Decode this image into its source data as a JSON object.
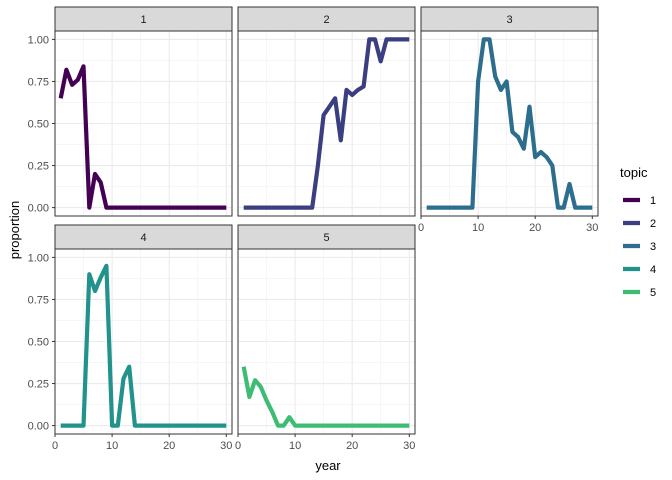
{
  "chart_data": {
    "type": "line",
    "facet_by": "topic",
    "xlabel": "year",
    "ylabel": "proportion",
    "xlim": [
      0,
      31
    ],
    "ylim": [
      -0.05,
      1.05
    ],
    "x_ticks": [
      0,
      10,
      20,
      30
    ],
    "y_ticks": [
      0.0,
      0.25,
      0.5,
      0.75,
      1.0
    ],
    "y_tick_labels": [
      "0.00",
      "0.25",
      "0.50",
      "0.75",
      "1.00"
    ],
    "grid": true,
    "legend": {
      "title": "topic",
      "placement": "right",
      "entries": [
        "1",
        "2",
        "3",
        "4",
        "5"
      ]
    },
    "colors": [
      "#440154",
      "#3b3f81",
      "#2d6e8e",
      "#21928c",
      "#3dbc74"
    ],
    "facets": [
      {
        "label": "1",
        "color": "#440154",
        "x": [
          1,
          2,
          3,
          4,
          5,
          6,
          7,
          8,
          9,
          10,
          11,
          12,
          13,
          14,
          15,
          16,
          17,
          18,
          19,
          20,
          21,
          22,
          23,
          24,
          25,
          26,
          27,
          28,
          29,
          30
        ],
        "y": [
          0.65,
          0.82,
          0.73,
          0.76,
          0.84,
          0.0,
          0.2,
          0.15,
          0,
          0,
          0,
          0,
          0,
          0,
          0,
          0,
          0,
          0,
          0,
          0,
          0,
          0,
          0,
          0,
          0,
          0,
          0,
          0,
          0,
          0
        ]
      },
      {
        "label": "2",
        "color": "#3b3f81",
        "x": [
          1,
          2,
          3,
          4,
          5,
          6,
          7,
          8,
          9,
          10,
          11,
          12,
          13,
          14,
          15,
          16,
          17,
          18,
          19,
          20,
          21,
          22,
          23,
          24,
          25,
          26,
          27,
          28,
          29,
          30
        ],
        "y": [
          0,
          0,
          0,
          0,
          0,
          0,
          0,
          0,
          0,
          0,
          0,
          0,
          0,
          0.25,
          0.55,
          0.6,
          0.65,
          0.4,
          0.7,
          0.67,
          0.7,
          0.72,
          1.0,
          1.0,
          0.87,
          1.0,
          1.0,
          1.0,
          1.0,
          1.0
        ]
      },
      {
        "label": "3",
        "color": "#2d6e8e",
        "x": [
          1,
          2,
          3,
          4,
          5,
          6,
          7,
          8,
          9,
          10,
          11,
          12,
          13,
          14,
          15,
          16,
          17,
          18,
          19,
          20,
          21,
          22,
          23,
          24,
          25,
          26,
          27,
          28,
          29,
          30
        ],
        "y": [
          0,
          0,
          0,
          0,
          0,
          0,
          0,
          0,
          0,
          0.75,
          1.0,
          1.0,
          0.78,
          0.7,
          0.75,
          0.45,
          0.42,
          0.35,
          0.6,
          0.3,
          0.33,
          0.3,
          0.25,
          0,
          0,
          0.14,
          0,
          0,
          0,
          0
        ]
      },
      {
        "label": "4",
        "color": "#21928c",
        "x": [
          1,
          2,
          3,
          4,
          5,
          6,
          7,
          8,
          9,
          10,
          11,
          12,
          13,
          14,
          15,
          16,
          17,
          18,
          19,
          20,
          21,
          22,
          23,
          24,
          25,
          26,
          27,
          28,
          29,
          30
        ],
        "y": [
          0,
          0,
          0,
          0,
          0,
          0.9,
          0.8,
          0.88,
          0.95,
          0,
          0,
          0.28,
          0.35,
          0,
          0,
          0,
          0,
          0,
          0,
          0,
          0,
          0,
          0,
          0,
          0,
          0,
          0,
          0,
          0,
          0
        ]
      },
      {
        "label": "5",
        "color": "#3dbc74",
        "x": [
          1,
          2,
          3,
          4,
          5,
          6,
          7,
          8,
          9,
          10,
          11,
          12,
          13,
          14,
          15,
          16,
          17,
          18,
          19,
          20,
          21,
          22,
          23,
          24,
          25,
          26,
          27,
          28,
          29,
          30
        ],
        "y": [
          0.35,
          0.17,
          0.27,
          0.23,
          0.15,
          0.08,
          0,
          0,
          0.05,
          0,
          0,
          0,
          0,
          0,
          0,
          0,
          0,
          0,
          0,
          0,
          0,
          0,
          0,
          0,
          0,
          0,
          0,
          0,
          0,
          0
        ]
      }
    ]
  }
}
